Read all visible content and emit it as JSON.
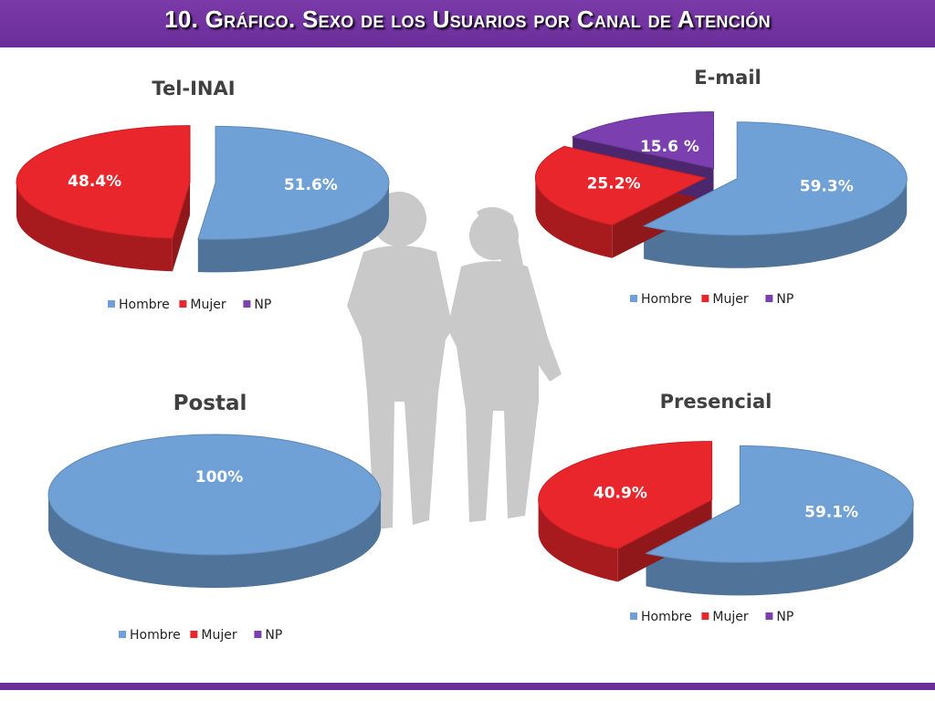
{
  "header": {
    "title": "10. Gráfico. Sexo de los Usuarios por Canal de Atención"
  },
  "colors": {
    "hombre": "#6fa0d6",
    "mujer": "#e8262b",
    "np": "#7b3fb0",
    "header": "#6a2e99"
  },
  "chart_data": [
    {
      "type": "pie",
      "title": "Tel-INAI",
      "categories": [
        "Hombre",
        "Mujer",
        "NP"
      ],
      "values": [
        51.6,
        48.4,
        0
      ],
      "labels": [
        "51.6%",
        "48.4%",
        ""
      ],
      "legend": [
        "Hombre",
        "Mujer",
        "NP"
      ],
      "exploded": true
    },
    {
      "type": "pie",
      "title": "E-mail",
      "categories": [
        "Hombre",
        "Mujer",
        "NP"
      ],
      "values": [
        59.3,
        25.2,
        15.6
      ],
      "labels": [
        "59.3%",
        "25.2%",
        "15.6 %"
      ],
      "legend": [
        "Hombre",
        "Mujer",
        "NP"
      ],
      "exploded": true
    },
    {
      "type": "pie",
      "title": "Postal",
      "categories": [
        "Hombre",
        "Mujer",
        "NP"
      ],
      "values": [
        100,
        0,
        0
      ],
      "labels": [
        "100%",
        "",
        ""
      ],
      "legend": [
        "Hombre",
        "Mujer",
        "NP"
      ],
      "exploded": false
    },
    {
      "type": "pie",
      "title": "Presencial",
      "categories": [
        "Hombre",
        "Mujer",
        "NP"
      ],
      "values": [
        59.1,
        40.9,
        0
      ],
      "labels": [
        "59.1%",
        "40.9%",
        ""
      ],
      "legend": [
        "Hombre",
        "Mujer",
        "NP"
      ],
      "exploded": true
    }
  ]
}
